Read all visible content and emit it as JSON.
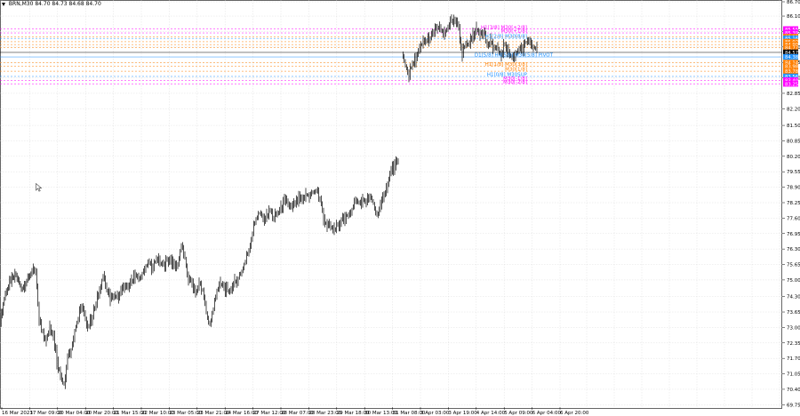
{
  "header": {
    "symbol": "BRN,M30",
    "ohlc": "84.70 84.73 84.68 84.70"
  },
  "icons": {
    "menu": "triangle-down-icon",
    "cursor": "mouse-pointer-icon"
  },
  "colors": {
    "candle": "#000000",
    "grid": "#d8d8d8",
    "magenta": "#ff00ff",
    "orange": "#ff7f00",
    "blue": "#1e90ff",
    "bid": "#c0c0c0"
  },
  "chart_data": {
    "type": "candlestick",
    "title": "",
    "ylim": [
      69.65,
      86.7
    ],
    "y_ticks": [
      "86.70",
      "86.10",
      "85.45",
      "84.80",
      "84.15",
      "83.50",
      "82.85",
      "82.20",
      "81.50",
      "80.85",
      "80.20",
      "79.55",
      "78.90",
      "78.25",
      "77.60",
      "76.95",
      "76.30",
      "75.65",
      "75.00",
      "74.30",
      "73.65",
      "73.00",
      "72.35",
      "71.70",
      "71.05",
      "70.40",
      "69.75"
    ],
    "x_labels": [
      "16 Mar 2023",
      "17 Mar 09:00",
      "20 Mar 04:00",
      "20 Mar 20:00",
      "21 Mar 15:00",
      "22 Mar 10:00",
      "23 Mar 05:00",
      "23 Mar 21:00",
      "24 Mar 16:00",
      "27 Mar 12:00",
      "28 Mar 07:00",
      "28 Mar 23:00",
      "29 Mar 18:00",
      "30 Mar 13:00",
      "31 Mar 08:00",
      "3 Apr 03:00",
      "3 Apr 19:00",
      "4 Apr 14:00",
      "5 Apr 09:00",
      "6 Apr 04:00",
      "6 Apr 20:00"
    ],
    "price_path_segment1": [
      [
        0,
        73.2
      ],
      [
        6,
        74.5
      ],
      [
        12,
        74.9
      ],
      [
        18,
        75.2
      ],
      [
        24,
        74.6
      ],
      [
        30,
        75.0
      ],
      [
        36,
        75.4
      ],
      [
        40,
        75.3
      ],
      [
        44,
        73.3
      ],
      [
        48,
        72.8
      ],
      [
        52,
        72.5
      ],
      [
        56,
        73.0
      ],
      [
        60,
        72.7
      ],
      [
        64,
        71.6
      ],
      [
        68,
        71.0
      ],
      [
        72,
        70.6
      ],
      [
        76,
        71.8
      ],
      [
        80,
        72.1
      ],
      [
        84,
        72.9
      ],
      [
        88,
        73.4
      ],
      [
        92,
        73.9
      ],
      [
        96,
        73.3
      ],
      [
        100,
        73.1
      ],
      [
        104,
        73.5
      ],
      [
        108,
        74.0
      ],
      [
        112,
        74.6
      ],
      [
        116,
        75.2
      ],
      [
        120,
        74.5
      ],
      [
        124,
        74.2
      ],
      [
        128,
        74.4
      ],
      [
        132,
        74.3
      ],
      [
        136,
        74.5
      ],
      [
        140,
        74.7
      ],
      [
        144,
        74.6
      ],
      [
        148,
        74.9
      ],
      [
        152,
        75.2
      ],
      [
        156,
        75.0
      ],
      [
        160,
        75.3
      ],
      [
        164,
        75.6
      ],
      [
        168,
        75.7
      ],
      [
        172,
        75.5
      ],
      [
        176,
        75.9
      ],
      [
        180,
        75.7
      ],
      [
        184,
        75.6
      ],
      [
        188,
        75.8
      ],
      [
        192,
        75.9
      ],
      [
        196,
        75.5
      ],
      [
        200,
        75.7
      ],
      [
        204,
        76.5
      ],
      [
        208,
        75.9
      ],
      [
        212,
        75.0
      ],
      [
        216,
        74.9
      ],
      [
        220,
        74.4
      ],
      [
        224,
        74.9
      ],
      [
        228,
        74.6
      ],
      [
        232,
        73.6
      ],
      [
        236,
        73.1
      ],
      [
        240,
        73.8
      ],
      [
        244,
        74.6
      ],
      [
        248,
        74.8
      ],
      [
        252,
        74.7
      ],
      [
        256,
        74.5
      ],
      [
        260,
        74.7
      ],
      [
        264,
        74.9
      ],
      [
        268,
        75.1
      ],
      [
        272,
        75.4
      ],
      [
        276,
        75.8
      ],
      [
        280,
        76.3
      ],
      [
        284,
        77.0
      ],
      [
        288,
        77.6
      ],
      [
        292,
        77.8
      ],
      [
        296,
        77.6
      ],
      [
        300,
        77.7
      ],
      [
        304,
        77.9
      ],
      [
        308,
        77.6
      ],
      [
        312,
        77.8
      ],
      [
        316,
        78.0
      ],
      [
        320,
        78.3
      ],
      [
        324,
        78.2
      ],
      [
        328,
        78.0
      ],
      [
        332,
        78.2
      ],
      [
        336,
        78.4
      ],
      [
        340,
        78.3
      ],
      [
        344,
        78.6
      ],
      [
        348,
        78.5
      ],
      [
        352,
        78.7
      ],
      [
        356,
        78.8
      ],
      [
        360,
        78.4
      ],
      [
        364,
        77.6
      ],
      [
        368,
        77.3
      ],
      [
        372,
        77.2
      ],
      [
        376,
        77.1
      ],
      [
        380,
        77.3
      ],
      [
        384,
        77.6
      ],
      [
        388,
        77.5
      ],
      [
        392,
        77.8
      ],
      [
        396,
        78.0
      ],
      [
        400,
        78.3
      ],
      [
        404,
        78.2
      ],
      [
        408,
        78.4
      ],
      [
        412,
        78.3
      ],
      [
        416,
        78.5
      ],
      [
        420,
        78.2
      ],
      [
        424,
        77.7
      ],
      [
        428,
        78.1
      ],
      [
        432,
        78.6
      ],
      [
        436,
        79.0
      ],
      [
        440,
        79.6
      ],
      [
        444,
        79.8
      ],
      [
        448,
        79.9
      ]
    ],
    "price_path_segment2": [
      [
        452,
        84.5
      ],
      [
        456,
        84.0
      ],
      [
        460,
        83.6
      ],
      [
        464,
        84.1
      ],
      [
        468,
        84.3
      ],
      [
        472,
        84.7
      ],
      [
        476,
        85.0
      ],
      [
        480,
        85.1
      ],
      [
        484,
        85.2
      ],
      [
        488,
        85.4
      ],
      [
        492,
        85.6
      ],
      [
        496,
        85.5
      ],
      [
        500,
        85.3
      ],
      [
        504,
        85.7
      ],
      [
        508,
        85.9
      ],
      [
        512,
        85.8
      ],
      [
        516,
        85.6
      ],
      [
        520,
        84.5
      ],
      [
        524,
        85.0
      ],
      [
        528,
        84.9
      ],
      [
        532,
        85.3
      ],
      [
        536,
        85.5
      ],
      [
        540,
        85.4
      ],
      [
        544,
        85.5
      ],
      [
        548,
        84.9
      ],
      [
        552,
        85.0
      ],
      [
        556,
        84.8
      ],
      [
        560,
        84.7
      ],
      [
        564,
        84.5
      ],
      [
        568,
        84.9
      ],
      [
        572,
        84.6
      ],
      [
        576,
        84.3
      ],
      [
        580,
        84.5
      ],
      [
        584,
        84.8
      ],
      [
        588,
        84.6
      ],
      [
        592,
        85.0
      ],
      [
        596,
        84.9
      ],
      [
        600,
        84.8
      ],
      [
        604,
        84.7
      ]
    ],
    "levels": [
      {
        "value": 85.55,
        "label": "H1[3/8] M30[+2/8]",
        "color": "#ff00ff",
        "dash": true,
        "tag": "85.55"
      },
      {
        "value": 85.39,
        "label": "M30[+1/8]",
        "color": "#ff00ff",
        "dash": true,
        "tag": "85.39"
      },
      {
        "value": 85.23,
        "label": "",
        "color": "#ff7f00",
        "dash": true,
        "tag": "85.23"
      },
      {
        "value": 85.16,
        "label": "H1[2/8] M30[8/8]",
        "color": "#1e90ff",
        "dash": true,
        "tag": "85.16"
      },
      {
        "value": 85.02,
        "label": "",
        "color": "#ff7f00",
        "dash": true,
        "tag": "85.02"
      },
      {
        "value": 84.9,
        "label": "",
        "color": "#ff7f00",
        "dash": true,
        "tag": "84.90"
      },
      {
        "value": 84.77,
        "label": "",
        "color": "#ff7f00",
        "dash": true,
        "tag": "84.77"
      },
      {
        "value": 84.57,
        "label": "",
        "color": "#000000",
        "dash": false,
        "tag": "84.57"
      },
      {
        "value": 84.38,
        "label": "D1[5/8] H4[5/8] M30[5/8] PIVOT",
        "color": "#1e90ff",
        "dash": false,
        "tag": "84.38"
      },
      {
        "value": 84.14,
        "label": "",
        "color": "#ff7f00",
        "dash": true,
        "tag": "84.14"
      },
      {
        "value": 83.98,
        "label": "H1[1/8] M30[3/8]",
        "color": "#ff7f00",
        "dash": true,
        "tag": "83.98"
      },
      {
        "value": 83.78,
        "label": "M30[1/8]",
        "color": "#ff7f00",
        "dash": true,
        "tag": "83.78"
      },
      {
        "value": 83.56,
        "label": "H1[0/8] M30SUP",
        "color": "#1e90ff",
        "dash": true,
        "tag": "83.56"
      },
      {
        "value": 83.4,
        "label": "M30[-1/8]",
        "color": "#ff00ff",
        "dash": true,
        "tag": "83.40"
      },
      {
        "value": 83.25,
        "label": "M30[-2/8]",
        "color": "#ff00ff",
        "dash": true,
        "tag": "83.25"
      }
    ],
    "grid": true,
    "legend": "none"
  }
}
